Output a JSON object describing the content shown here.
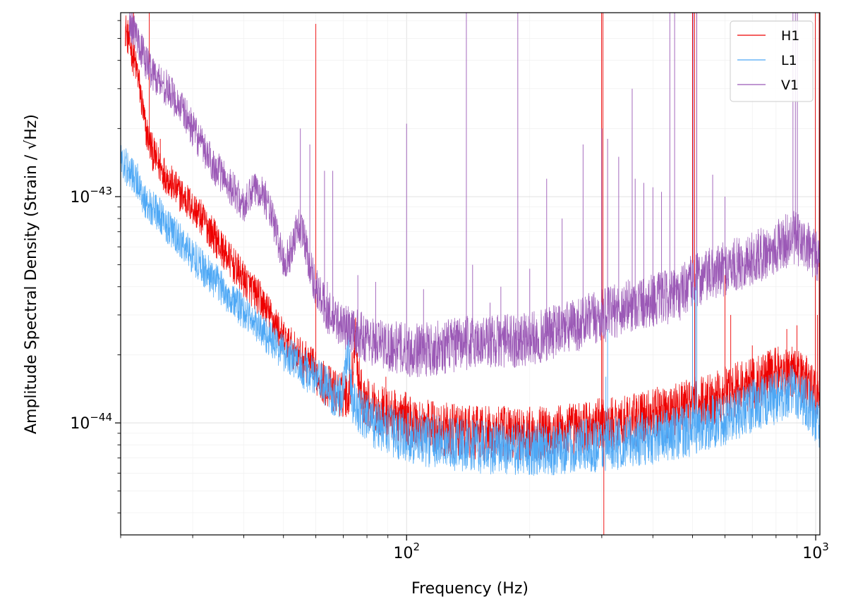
{
  "chart_data": {
    "type": "line",
    "xlabel": "Frequency (Hz)",
    "ylabel": "Amplitude Spectral Density (Strain / √Hz)",
    "x_scale": "log",
    "y_scale": "log",
    "xlim": [
      20,
      1024
    ],
    "ylim": [
      3.2e-45,
      6.5e-43
    ],
    "x_ticks": [
      {
        "value": 100,
        "base": "10",
        "exp": "2"
      },
      {
        "value": 1000,
        "base": "10",
        "exp": "3"
      }
    ],
    "y_ticks": [
      {
        "value": 1e-44,
        "base": "10",
        "exp": "−44"
      },
      {
        "value": 1e-43,
        "base": "10",
        "exp": "−43"
      }
    ],
    "grid": true,
    "legend_position": "top-right",
    "series": [
      {
        "name": "H1",
        "color": "#ee0000",
        "points": [
          [
            20.5,
            5.6e-43
          ],
          [
            21,
            4.8e-43
          ],
          [
            22,
            3.5e-43
          ],
          [
            23,
            2e-43
          ],
          [
            24,
            1.55e-43
          ],
          [
            25,
            1.35e-43
          ],
          [
            27,
            1.1e-43
          ],
          [
            30,
            9e-44
          ],
          [
            33,
            7.2e-44
          ],
          [
            36,
            5.6e-44
          ],
          [
            40,
            4.3e-44
          ],
          [
            44,
            3.5e-44
          ],
          [
            48,
            2.7e-44
          ],
          [
            50,
            2.35e-44
          ],
          [
            53,
            2.1e-44
          ],
          [
            55,
            1.95e-44
          ],
          [
            58,
            1.8e-44
          ],
          [
            61,
            1.6e-44
          ],
          [
            63,
            1.5e-44
          ],
          [
            66,
            1.4e-44
          ],
          [
            70,
            1.32e-44
          ],
          [
            72,
            1.35e-44
          ],
          [
            74,
            1.75e-44
          ],
          [
            75,
            2.7e-44
          ],
          [
            76,
            1.65e-44
          ],
          [
            78,
            1.3e-44
          ],
          [
            82,
            1.18e-44
          ],
          [
            88,
            1.12e-44
          ],
          [
            92,
            1.08e-44
          ],
          [
            98,
            1.05e-44
          ],
          [
            105,
            1e-44
          ],
          [
            115,
            9.6e-45
          ],
          [
            130,
            9.2e-45
          ],
          [
            150,
            9e-45
          ],
          [
            180,
            9e-45
          ],
          [
            210,
            9e-45
          ],
          [
            250,
            9.3e-45
          ],
          [
            300,
            9.8e-45
          ],
          [
            350,
            1.02e-44
          ],
          [
            400,
            1.08e-44
          ],
          [
            450,
            1.15e-44
          ],
          [
            500,
            1.2e-44
          ],
          [
            600,
            1.35e-44
          ],
          [
            700,
            1.5e-44
          ],
          [
            800,
            1.65e-44
          ],
          [
            880,
            1.7e-44
          ],
          [
            950,
            1.55e-44
          ],
          [
            1000,
            1.35e-44
          ],
          [
            1024,
            1.3e-44
          ]
        ],
        "lines": [
          [
            21.5,
            6.5e-43
          ],
          [
            23.5,
            6.5e-43
          ],
          [
            25,
            1.8e-43
          ],
          [
            33,
            6e-44
          ],
          [
            35,
            6e-44
          ],
          [
            44,
            3e-44
          ],
          [
            46,
            2.9e-44
          ],
          [
            60,
            5.8e-43
          ],
          [
            75,
            2.9e-44
          ],
          [
            89,
            1.6e-44
          ],
          [
            299.5,
            6.5e-43
          ],
          [
            302,
            6.5e-43
          ],
          [
            303.5,
            3.2e-45
          ],
          [
            500,
            6.5e-43
          ],
          [
            506,
            6.5e-43
          ],
          [
            512,
            6.5e-43
          ],
          [
            600,
            4.5e-44
          ],
          [
            620,
            3e-44
          ],
          [
            700,
            2.2e-44
          ],
          [
            850,
            2.6e-44
          ],
          [
            900,
            2.7e-44
          ],
          [
            998,
            6.5e-43
          ],
          [
            1010,
            3e-44
          ],
          [
            1020,
            6.5e-43
          ]
        ]
      },
      {
        "name": "L1",
        "color": "#4ea8f5",
        "points": [
          [
            20,
            1.45e-43
          ],
          [
            21,
            1.3e-43
          ],
          [
            22,
            1.15e-43
          ],
          [
            23,
            9.5e-44
          ],
          [
            25,
            8.2e-44
          ],
          [
            27,
            6.8e-44
          ],
          [
            30,
            5.5e-44
          ],
          [
            33,
            4.5e-44
          ],
          [
            36,
            3.8e-44
          ],
          [
            40,
            3.1e-44
          ],
          [
            44,
            2.6e-44
          ],
          [
            48,
            2.2e-44
          ],
          [
            53,
            1.9e-44
          ],
          [
            58,
            1.65e-44
          ],
          [
            62,
            1.5e-44
          ],
          [
            66,
            1.35e-44
          ],
          [
            68,
            1.3e-44
          ],
          [
            70,
            1.38e-44
          ],
          [
            71,
            1.7e-44
          ],
          [
            72,
            2.35e-44
          ],
          [
            73,
            1.5e-44
          ],
          [
            74,
            1.22e-44
          ],
          [
            78,
            1.1e-44
          ],
          [
            84,
            9.8e-45
          ],
          [
            92,
            9.2e-45
          ],
          [
            100,
            8.8e-45
          ],
          [
            120,
            8.2e-45
          ],
          [
            150,
            7.8e-45
          ],
          [
            180,
            7.6e-45
          ],
          [
            210,
            7.6e-45
          ],
          [
            250,
            7.8e-45
          ],
          [
            300,
            8e-45
          ],
          [
            350,
            8.3e-45
          ],
          [
            400,
            8.6e-45
          ],
          [
            450,
            9e-45
          ],
          [
            500,
            9.4e-45
          ],
          [
            600,
            1.05e-44
          ],
          [
            700,
            1.18e-44
          ],
          [
            800,
            1.3e-44
          ],
          [
            880,
            1.38e-44
          ],
          [
            950,
            1.25e-44
          ],
          [
            1000,
            1.05e-44
          ],
          [
            1024,
            1e-44
          ]
        ],
        "lines": [
          [
            21,
            1.35e-43
          ],
          [
            22,
            1.4e-43
          ],
          [
            72,
            2.5e-44
          ],
          [
            307,
            1.6e-44
          ],
          [
            310,
            2.6e-44
          ],
          [
            500,
            5e-44
          ],
          [
            508,
            4e-44
          ],
          [
            512,
            6e-44
          ],
          [
            1024,
            2e-44
          ]
        ]
      },
      {
        "name": "V1",
        "color": "#9b59b6",
        "points": [
          [
            21,
            6e-43
          ],
          [
            22,
            5e-43
          ],
          [
            23,
            4e-43
          ],
          [
            24,
            3.5e-43
          ],
          [
            26,
            3e-43
          ],
          [
            28,
            2.5e-43
          ],
          [
            30,
            2e-43
          ],
          [
            32,
            1.6e-43
          ],
          [
            34,
            1.35e-43
          ],
          [
            36,
            1.2e-43
          ],
          [
            38,
            1.05e-43
          ],
          [
            40,
            9e-44
          ],
          [
            42,
            1.05e-43
          ],
          [
            44,
            1.1e-43
          ],
          [
            46,
            9e-44
          ],
          [
            48,
            7e-44
          ],
          [
            49,
            6e-44
          ],
          [
            50,
            5.2e-44
          ],
          [
            52,
            5.6e-44
          ],
          [
            54,
            7.5e-44
          ],
          [
            56,
            6.8e-44
          ],
          [
            58,
            5e-44
          ],
          [
            60,
            4e-44
          ],
          [
            62,
            3.5e-44
          ],
          [
            64,
            3.1e-44
          ],
          [
            66,
            2.9e-44
          ],
          [
            70,
            2.7e-44
          ],
          [
            75,
            2.5e-44
          ],
          [
            80,
            2.35e-44
          ],
          [
            85,
            2.25e-44
          ],
          [
            90,
            2.2e-44
          ],
          [
            95,
            2.15e-44
          ],
          [
            100,
            2.1e-44
          ],
          [
            110,
            2.1e-44
          ],
          [
            120,
            2.15e-44
          ],
          [
            140,
            2.25e-44
          ],
          [
            160,
            2.3e-44
          ],
          [
            180,
            2.3e-44
          ],
          [
            200,
            2.35e-44
          ],
          [
            220,
            2.45e-44
          ],
          [
            240,
            2.6e-44
          ],
          [
            260,
            2.7e-44
          ],
          [
            280,
            2.85e-44
          ],
          [
            300,
            2.95e-44
          ],
          [
            320,
            3.1e-44
          ],
          [
            350,
            3.3e-44
          ],
          [
            400,
            3.5e-44
          ],
          [
            440,
            3.6e-44
          ],
          [
            460,
            3.6e-44
          ],
          [
            480,
            4e-44
          ],
          [
            500,
            4.2e-44
          ],
          [
            550,
            4.5e-44
          ],
          [
            600,
            4.8e-44
          ],
          [
            700,
            5.3e-44
          ],
          [
            800,
            6e-44
          ],
          [
            880,
            6.6e-44
          ],
          [
            950,
            6e-44
          ],
          [
            1000,
            5.4e-44
          ],
          [
            1024,
            5.2e-44
          ]
        ],
        "lines": [
          [
            55,
            2e-43
          ],
          [
            58,
            1.7e-43
          ],
          [
            63,
            1.3e-43
          ],
          [
            64,
            4.2e-44
          ],
          [
            66,
            1.3e-43
          ],
          [
            76,
            4.5e-44
          ],
          [
            84,
            4.2e-44
          ],
          [
            100,
            2.1e-43
          ],
          [
            110,
            3.9e-44
          ],
          [
            140,
            6.5e-43
          ],
          [
            145,
            5e-44
          ],
          [
            160,
            3.4e-44
          ],
          [
            170,
            4e-44
          ],
          [
            187,
            6.5e-43
          ],
          [
            200,
            4.8e-44
          ],
          [
            220,
            1.2e-43
          ],
          [
            240,
            8e-44
          ],
          [
            270,
            1.7e-43
          ],
          [
            300,
            2e-43
          ],
          [
            310,
            1.8e-43
          ],
          [
            330,
            1.5e-43
          ],
          [
            356,
            3e-43
          ],
          [
            362,
            1.2e-43
          ],
          [
            380,
            1.15e-43
          ],
          [
            400,
            1.1e-43
          ],
          [
            420,
            1.05e-43
          ],
          [
            440,
            6.5e-43
          ],
          [
            452,
            6.5e-43
          ],
          [
            502,
            6.5e-43
          ],
          [
            512,
            6.5e-43
          ],
          [
            560,
            1.25e-43
          ],
          [
            600,
            1e-43
          ],
          [
            880,
            6.5e-43
          ],
          [
            892,
            6.5e-43
          ],
          [
            902,
            6.5e-43
          ]
        ]
      }
    ]
  }
}
